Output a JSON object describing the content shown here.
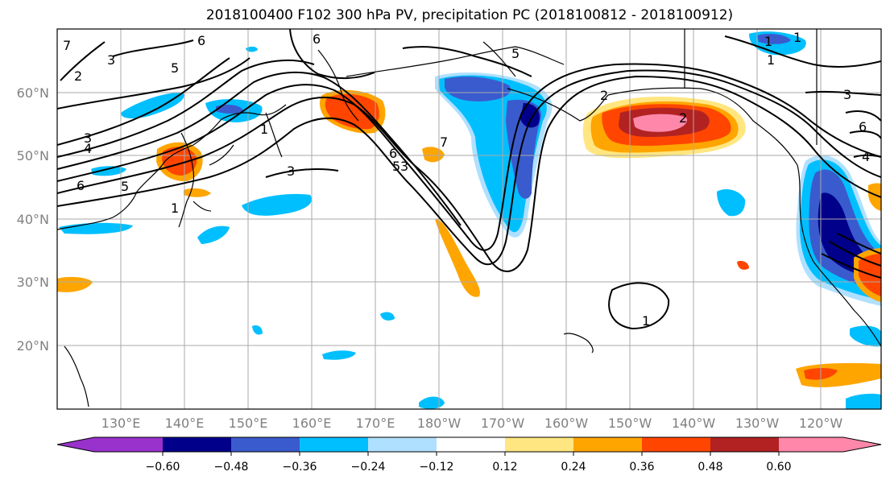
{
  "title": "2018100400 F102 300 hPa PV, precipitation PC (2018100812 - 2018100912)",
  "lat_labels": [
    "60°N",
    "50°N",
    "40°N",
    "30°N",
    "20°N"
  ],
  "lon_labels": [
    "130°E",
    "140°E",
    "150°E",
    "160°E",
    "170°E",
    "180°W",
    "170°W",
    "160°W",
    "150°W",
    "140°W",
    "130°W",
    "120°W"
  ],
  "colorbar": {
    "ticks": [
      "−0.60",
      "−0.48",
      "−0.36",
      "−0.24",
      "−0.12",
      "0.12",
      "0.24",
      "0.36",
      "0.48",
      "0.60"
    ],
    "colors": [
      "#9932cc",
      "#00008b",
      "#3a5bcd",
      "#00bfff",
      "#b0e0ff",
      "#ffffff",
      "#ffe680",
      "#ffa500",
      "#ff4500",
      "#b22222",
      "#ff88aa"
    ]
  },
  "contour_labels": [
    "7",
    "3",
    "2",
    "6",
    "5",
    "6",
    "3",
    "4",
    "6",
    "5",
    "1",
    "1",
    "3",
    "7",
    "6",
    "5",
    "3",
    "2",
    "1",
    "3",
    "6",
    "4",
    "1",
    "1",
    "1",
    "2",
    "5"
  ]
}
